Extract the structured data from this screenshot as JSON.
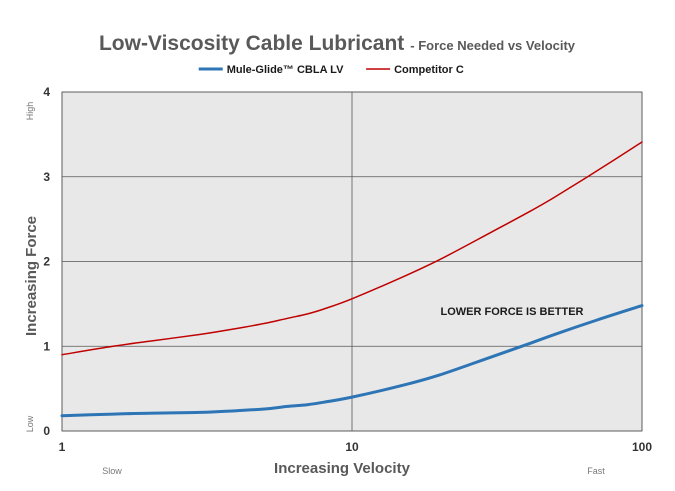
{
  "chart_data": {
    "type": "line",
    "title": "Low-Viscosity Cable Lubricant",
    "subtitle": "- Force Needed vs Velocity",
    "xlabel": "Increasing Velocity",
    "ylabel": "Increasing Force",
    "x_scale": "log",
    "xlim": [
      1,
      100
    ],
    "ylim": [
      0,
      4
    ],
    "x_ticks": [
      "1",
      "10",
      "100"
    ],
    "y_ticks": [
      "0",
      "1",
      "2",
      "3",
      "4"
    ],
    "x_end_labels": {
      "low": "Slow",
      "high": "Fast"
    },
    "y_end_labels": {
      "low": "Low",
      "high": "High"
    },
    "grid": true,
    "legend_position": "top",
    "annotation": "LOWER FORCE IS BETTER",
    "series": [
      {
        "name": "Mule-Glide™ CBLA LV",
        "color": "#2e75b6",
        "x": [
          1,
          1.5,
          2,
          3,
          4,
          5,
          6,
          7,
          8,
          10,
          15,
          20,
          30,
          40,
          50,
          70,
          100
        ],
        "y": [
          0.18,
          0.2,
          0.21,
          0.22,
          0.24,
          0.26,
          0.29,
          0.31,
          0.34,
          0.4,
          0.54,
          0.66,
          0.87,
          1.02,
          1.14,
          1.31,
          1.48
        ]
      },
      {
        "name": "Competitor C",
        "color": "#c00000",
        "x": [
          1,
          1.5,
          2,
          3,
          4,
          5,
          6,
          7,
          8,
          10,
          15,
          20,
          30,
          40,
          50,
          70,
          100
        ],
        "y": [
          0.9,
          1.0,
          1.06,
          1.14,
          1.21,
          1.27,
          1.33,
          1.38,
          1.44,
          1.56,
          1.82,
          2.02,
          2.34,
          2.57,
          2.76,
          3.07,
          3.41
        ]
      }
    ]
  }
}
